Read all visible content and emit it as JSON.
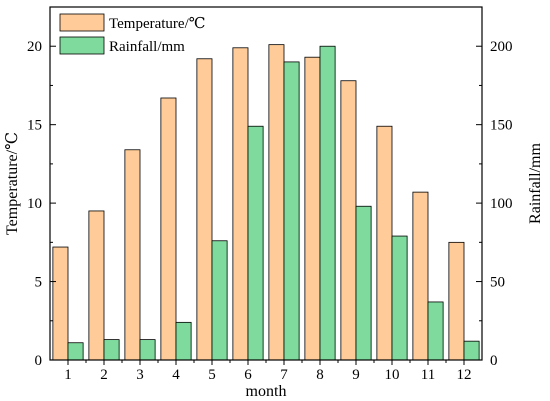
{
  "chart_data": {
    "type": "bar",
    "categories": [
      "1",
      "2",
      "3",
      "4",
      "5",
      "6",
      "7",
      "8",
      "9",
      "10",
      "11",
      "12"
    ],
    "xlabel": "month",
    "y_left": {
      "label": "Temperature/℃",
      "lim": [
        0,
        22.5
      ],
      "ticks": [
        0,
        5,
        10,
        15,
        20
      ]
    },
    "y_right": {
      "label": "Rainfall/mm",
      "lim": [
        0,
        225
      ],
      "ticks": [
        0,
        50,
        100,
        150,
        200
      ]
    },
    "series": [
      {
        "name": "Temperature/℃",
        "axis": "left",
        "color": "#FFCC99",
        "values": [
          7.2,
          9.5,
          13.4,
          16.7,
          19.2,
          19.9,
          20.1,
          19.3,
          17.8,
          14.9,
          10.7,
          7.5
        ]
      },
      {
        "name": "Rainfall/mm",
        "axis": "right",
        "color": "#7FDB9D",
        "values": [
          11,
          13,
          13,
          24,
          76,
          149,
          190,
          200,
          98,
          79,
          37,
          12
        ]
      }
    ],
    "legend": "top-left",
    "grid": false
  }
}
